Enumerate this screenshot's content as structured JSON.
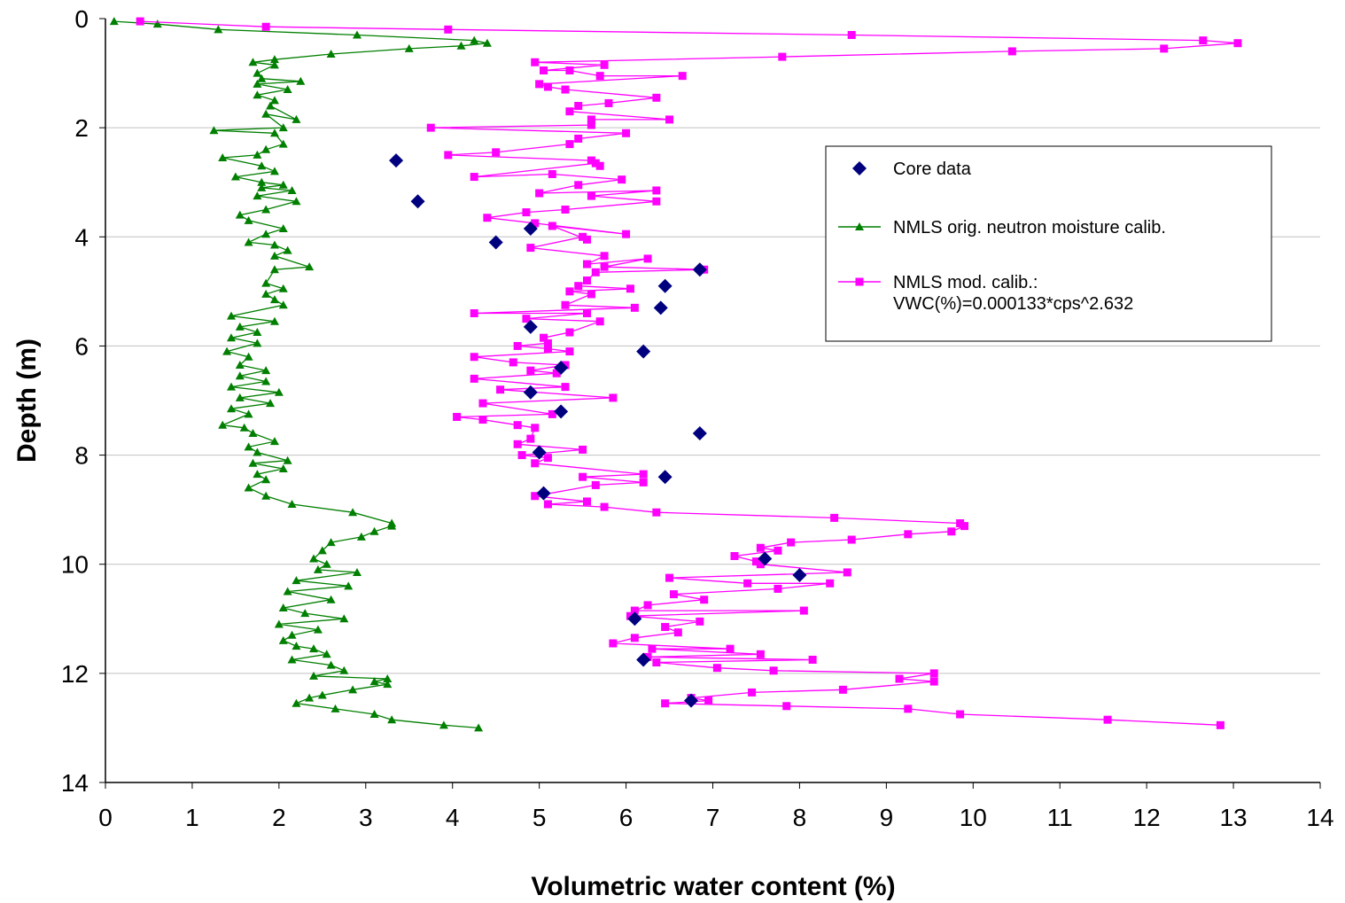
{
  "chart_data": {
    "type": "scatter",
    "title": "",
    "xlabel": "Volumetric water content (%)",
    "ylabel": "Depth (m)",
    "xlim": [
      0,
      14
    ],
    "ylim": [
      0,
      14
    ],
    "y_inverted": true,
    "x_ticks": [
      "0",
      "1",
      "2",
      "3",
      "4",
      "5",
      "6",
      "7",
      "8",
      "9",
      "10",
      "11",
      "12",
      "13",
      "14"
    ],
    "y_ticks": [
      "0",
      "2",
      "4",
      "6",
      "8",
      "10",
      "12",
      "14"
    ],
    "grid": "horizontal",
    "legend_position": "right",
    "series": [
      {
        "name": "Core data",
        "style": "markers",
        "marker": "diamond",
        "color": "#00007f",
        "x": [
          3.35,
          3.6,
          4.9,
          4.5,
          6.85,
          6.45,
          6.4,
          4.9,
          6.2,
          5.25,
          4.9,
          5.25,
          6.85,
          5.0,
          6.45,
          5.05,
          7.6,
          8.0,
          6.1,
          6.2,
          6.75
        ],
        "y": [
          2.6,
          3.35,
          3.85,
          4.1,
          4.6,
          4.9,
          5.3,
          5.65,
          6.1,
          6.4,
          6.85,
          7.2,
          7.6,
          7.95,
          8.4,
          8.7,
          9.9,
          10.2,
          11.0,
          11.75,
          12.5
        ]
      },
      {
        "name": "NMLS orig. neutron moisture calib.",
        "style": "line-markers",
        "marker": "triangle",
        "color": "#007f00",
        "x": [
          0.1,
          0.6,
          1.3,
          2.9,
          4.25,
          4.4,
          4.1,
          3.5,
          2.6,
          1.95,
          1.7,
          1.95,
          1.75,
          1.8,
          2.25,
          1.75,
          2.1,
          1.75,
          1.95,
          1.9,
          2.2,
          1.85,
          2.05,
          1.25,
          1.95,
          2.05,
          1.85,
          1.75,
          1.35,
          1.8,
          1.95,
          1.5,
          1.8,
          2.05,
          1.8,
          2.15,
          1.75,
          2.2,
          1.85,
          1.55,
          1.65,
          2.05,
          1.85,
          1.65,
          1.95,
          2.1,
          1.95,
          2.35,
          1.95,
          1.85,
          2.05,
          1.85,
          1.95,
          2.05,
          1.45,
          1.95,
          1.55,
          1.75,
          1.45,
          1.75,
          1.4,
          1.65,
          1.55,
          1.85,
          1.55,
          1.85,
          1.45,
          2.0,
          1.55,
          1.9,
          1.45,
          1.65,
          1.35,
          1.6,
          1.7,
          1.95,
          1.65,
          1.75,
          2.1,
          1.7,
          2.05,
          1.75,
          1.85,
          1.65,
          1.85,
          2.15,
          2.85,
          3.3,
          3.3,
          3.1,
          2.95,
          2.6,
          2.5,
          2.4,
          2.55,
          2.45,
          2.9,
          2.2,
          2.8,
          2.1,
          2.6,
          2.05,
          2.3,
          2.75,
          2.0,
          2.45,
          2.15,
          2.05,
          2.2,
          2.4,
          2.55,
          2.15,
          2.6,
          2.75,
          2.4,
          3.25,
          3.1,
          3.25,
          2.85,
          2.5,
          2.35,
          2.2,
          2.65,
          3.1,
          3.3,
          3.9,
          4.3
        ],
        "y": [
          0.05,
          0.1,
          0.2,
          0.3,
          0.4,
          0.45,
          0.5,
          0.55,
          0.65,
          0.75,
          0.8,
          0.85,
          1.0,
          1.1,
          1.15,
          1.2,
          1.3,
          1.4,
          1.5,
          1.6,
          1.85,
          1.75,
          2.0,
          2.05,
          2.1,
          2.3,
          2.4,
          2.5,
          2.55,
          2.7,
          2.8,
          2.9,
          3.0,
          3.05,
          3.1,
          3.15,
          3.25,
          3.35,
          3.5,
          3.6,
          3.7,
          3.85,
          3.95,
          4.1,
          4.15,
          4.25,
          4.35,
          4.55,
          4.6,
          4.85,
          4.95,
          5.05,
          5.15,
          5.25,
          5.45,
          5.55,
          5.65,
          5.75,
          5.85,
          5.95,
          6.1,
          6.2,
          6.35,
          6.45,
          6.55,
          6.65,
          6.75,
          6.85,
          6.95,
          7.05,
          7.15,
          7.25,
          7.45,
          7.5,
          7.6,
          7.75,
          7.85,
          7.95,
          8.1,
          8.15,
          8.25,
          8.35,
          8.45,
          8.6,
          8.75,
          8.9,
          9.05,
          9.25,
          9.3,
          9.4,
          9.5,
          9.6,
          9.75,
          9.9,
          10.0,
          10.1,
          10.15,
          10.3,
          10.4,
          10.5,
          10.65,
          10.8,
          10.9,
          11.0,
          11.1,
          11.2,
          11.3,
          11.4,
          11.5,
          11.55,
          11.65,
          11.75,
          11.85,
          11.95,
          12.05,
          12.1,
          12.15,
          12.2,
          12.3,
          12.4,
          12.45,
          12.55,
          12.65,
          12.75,
          12.85,
          12.95,
          13.0
        ]
      },
      {
        "name": "NMLS mod. calib.:",
        "name_line2": "VWC(%)=0.000133*cps^2.632",
        "style": "line-markers",
        "marker": "square",
        "color": "#ff00ff",
        "x": [
          0.4,
          1.85,
          3.95,
          8.6,
          12.65,
          13.05,
          12.2,
          10.45,
          7.8,
          4.95,
          5.75,
          5.05,
          5.35,
          5.7,
          6.65,
          5.0,
          5.1,
          5.3,
          6.35,
          5.8,
          5.45,
          5.35,
          6.5,
          5.6,
          5.6,
          3.75,
          6.0,
          5.45,
          5.35,
          4.5,
          3.95,
          5.6,
          5.7,
          5.65,
          4.25,
          5.15,
          5.95,
          5.45,
          5.0,
          6.35,
          5.6,
          6.35,
          5.3,
          4.85,
          4.4,
          4.95,
          6.0,
          5.15,
          5.55,
          5.5,
          4.9,
          5.75,
          5.55,
          6.25,
          5.75,
          6.9,
          5.65,
          5.55,
          5.45,
          6.05,
          5.35,
          5.6,
          5.3,
          6.1,
          4.25,
          5.55,
          4.85,
          5.7,
          5.35,
          5.05,
          5.1,
          4.75,
          5.1,
          5.35,
          4.25,
          4.7,
          5.3,
          4.9,
          5.2,
          4.25,
          5.3,
          4.55,
          5.85,
          4.35,
          5.15,
          4.05,
          4.35,
          4.75,
          4.95,
          4.9,
          4.75,
          5.5,
          4.8,
          5.1,
          4.95,
          6.2,
          5.5,
          6.2,
          5.65,
          4.95,
          5.55,
          5.1,
          5.75,
          6.35,
          8.4,
          9.85,
          9.9,
          9.75,
          9.25,
          8.6,
          7.9,
          7.55,
          7.75,
          7.25,
          7.5,
          7.55,
          8.55,
          6.5,
          7.4,
          8.35,
          7.75,
          6.55,
          6.9,
          6.25,
          6.1,
          8.05,
          6.05,
          6.85,
          6.45,
          6.6,
          6.1,
          5.85,
          7.2,
          6.3,
          7.55,
          6.25,
          8.15,
          6.35,
          7.05,
          7.7,
          9.55,
          9.15,
          9.55,
          8.5,
          7.45,
          6.75,
          6.95,
          6.45,
          7.85,
          9.25,
          9.85,
          11.55,
          12.85
        ],
        "y": [
          0.05,
          0.15,
          0.2,
          0.3,
          0.4,
          0.45,
          0.55,
          0.6,
          0.7,
          0.8,
          0.85,
          0.95,
          0.95,
          1.05,
          1.05,
          1.2,
          1.25,
          1.3,
          1.45,
          1.55,
          1.6,
          1.7,
          1.85,
          1.85,
          1.95,
          2.0,
          2.1,
          2.2,
          2.3,
          2.45,
          2.5,
          2.6,
          2.7,
          2.65,
          2.9,
          2.85,
          2.95,
          3.05,
          3.2,
          3.15,
          3.25,
          3.35,
          3.5,
          3.55,
          3.65,
          3.75,
          3.95,
          3.8,
          4.05,
          4.0,
          4.2,
          4.35,
          4.5,
          4.4,
          4.55,
          4.6,
          4.65,
          4.8,
          4.9,
          4.95,
          5.0,
          5.05,
          5.25,
          5.3,
          5.4,
          5.4,
          5.5,
          5.55,
          5.75,
          5.85,
          5.95,
          6.0,
          6.05,
          6.1,
          6.2,
          6.3,
          6.35,
          6.45,
          6.5,
          6.6,
          6.75,
          6.8,
          6.95,
          7.05,
          7.25,
          7.3,
          7.35,
          7.45,
          7.5,
          7.7,
          7.8,
          7.9,
          8.0,
          8.05,
          8.15,
          8.35,
          8.4,
          8.5,
          8.55,
          8.75,
          8.85,
          8.9,
          8.95,
          9.05,
          9.15,
          9.25,
          9.3,
          9.4,
          9.45,
          9.55,
          9.6,
          9.7,
          9.75,
          9.85,
          9.95,
          10.0,
          10.15,
          10.25,
          10.35,
          10.35,
          10.45,
          10.55,
          10.65,
          10.75,
          10.85,
          10.85,
          10.95,
          11.05,
          11.15,
          11.25,
          11.35,
          11.45,
          11.55,
          11.55,
          11.65,
          11.7,
          11.75,
          11.8,
          11.9,
          11.95,
          12.0,
          12.1,
          12.15,
          12.3,
          12.35,
          12.45,
          12.5,
          12.55,
          12.6,
          12.65,
          12.75,
          12.85,
          12.95
        ]
      }
    ]
  }
}
